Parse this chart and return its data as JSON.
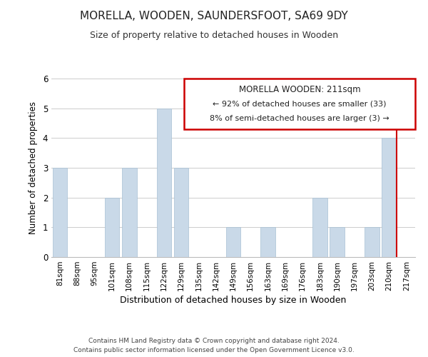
{
  "title": "MORELLA, WOODEN, SAUNDERSFOOT, SA69 9DY",
  "subtitle": "Size of property relative to detached houses in Wooden",
  "xlabel": "Distribution of detached houses by size in Wooden",
  "ylabel": "Number of detached properties",
  "bar_labels": [
    "81sqm",
    "88sqm",
    "95sqm",
    "101sqm",
    "108sqm",
    "115sqm",
    "122sqm",
    "129sqm",
    "135sqm",
    "142sqm",
    "149sqm",
    "156sqm",
    "163sqm",
    "169sqm",
    "176sqm",
    "183sqm",
    "190sqm",
    "197sqm",
    "203sqm",
    "210sqm",
    "217sqm"
  ],
  "bar_heights": [
    3,
    0,
    0,
    2,
    3,
    0,
    5,
    3,
    0,
    0,
    1,
    0,
    1,
    0,
    0,
    2,
    1,
    0,
    1,
    4,
    0
  ],
  "bar_color": "#c9d9e8",
  "bar_edge_color": "#a8c0d4",
  "highlight_bar_index": 19,
  "highlight_line_color": "#cc0000",
  "ylim": [
    0,
    6
  ],
  "yticks": [
    0,
    1,
    2,
    3,
    4,
    5,
    6
  ],
  "annotation_title": "MORELLA WOODEN: 211sqm",
  "annotation_line1": "← 92% of detached houses are smaller (33)",
  "annotation_line2": "8% of semi-detached houses are larger (3) →",
  "annotation_box_color": "#ffffff",
  "annotation_border_color": "#cc0000",
  "footer_line1": "Contains HM Land Registry data © Crown copyright and database right 2024.",
  "footer_line2": "Contains public sector information licensed under the Open Government Licence v3.0.",
  "background_color": "#ffffff",
  "grid_color": "#cccccc"
}
